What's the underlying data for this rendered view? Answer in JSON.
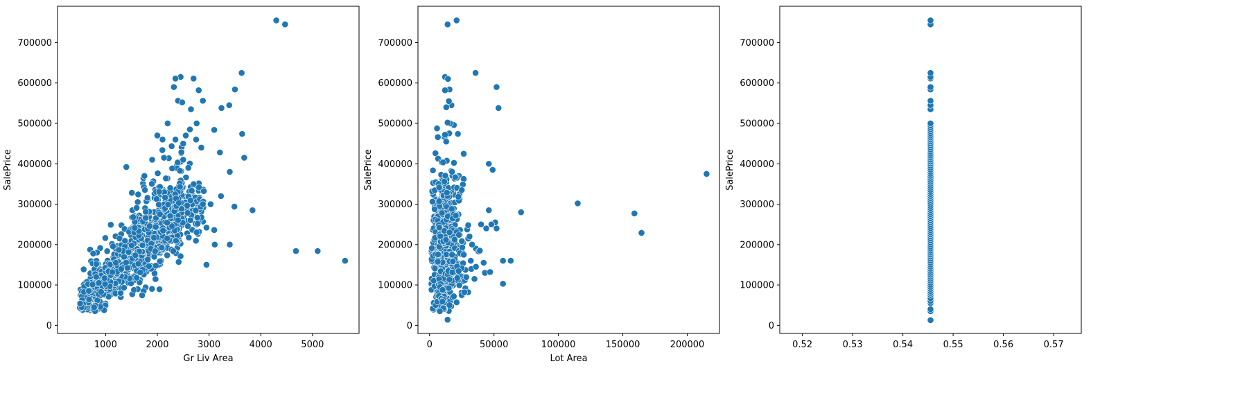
{
  "chart_data": [
    {
      "type": "scatter",
      "title": "",
      "xlabel": "Gr Liv Area",
      "ylabel": "SalePrice",
      "xlim": [
        70,
        5900
      ],
      "ylim": [
        -20000,
        790000
      ],
      "xticks": [
        1000,
        2000,
        3000,
        4000,
        5000
      ],
      "yticks": [
        0,
        100000,
        200000,
        300000,
        400000,
        500000,
        600000,
        700000
      ],
      "marker_color": "#1f77b4",
      "grid": false,
      "points": [
        [
          4300,
          755000
        ],
        [
          4470,
          745000
        ],
        [
          3630,
          625000
        ],
        [
          2450,
          615000
        ],
        [
          2350,
          611000
        ],
        [
          2700,
          611000
        ],
        [
          2320,
          590000
        ],
        [
          3500,
          584000
        ],
        [
          2800,
          582000
        ],
        [
          3390,
          545000
        ],
        [
          3240,
          538000
        ],
        [
          2650,
          535000
        ],
        [
          2400,
          556000
        ],
        [
          2480,
          552000
        ],
        [
          2880,
          556000
        ],
        [
          3100,
          484000
        ],
        [
          3640,
          474000
        ],
        [
          2200,
          500000
        ],
        [
          3680,
          415000
        ],
        [
          3210,
          428000
        ],
        [
          3400,
          380000
        ],
        [
          3840,
          285000
        ],
        [
          3490,
          294000
        ],
        [
          3030,
          300000
        ],
        [
          3230,
          320000
        ],
        [
          3100,
          236000
        ],
        [
          2950,
          242000
        ],
        [
          2880,
          300000
        ],
        [
          2950,
          150000
        ],
        [
          3110,
          200000
        ],
        [
          3400,
          200000
        ],
        [
          4680,
          184000
        ],
        [
          5100,
          184000
        ],
        [
          5630,
          160000
        ],
        [
          1400,
          392000
        ],
        [
          2500,
          410000
        ],
        [
          2600,
          390000
        ],
        [
          2100,
          460000
        ],
        [
          2000,
          470000
        ],
        [
          2350,
          460000
        ],
        [
          2750,
          460000
        ],
        [
          2500,
          450000
        ],
        [
          2630,
          485000
        ],
        [
          2760,
          500000
        ],
        [
          1900,
          410000
        ],
        [
          1750,
          370000
        ],
        [
          2550,
          470000
        ],
        [
          2850,
          440000
        ]
      ],
      "clusters": [
        {
          "slope": 105,
          "intercept": 5000,
          "xmin": 700,
          "xmax": 2900,
          "spread": 40000,
          "count": 520
        },
        {
          "slope": 125,
          "intercept": -10000,
          "xmin": 500,
          "xmax": 1500,
          "spread": 25000,
          "count": 220
        },
        {
          "slope": 120,
          "intercept": 30000,
          "xmin": 1500,
          "xmax": 2500,
          "spread": 55000,
          "count": 260
        }
      ]
    },
    {
      "type": "scatter",
      "title": "",
      "xlabel": "Lot Area",
      "ylabel": "SalePrice",
      "xlim": [
        -9000,
        225000
      ],
      "ylim": [
        -20000,
        790000
      ],
      "xticks": [
        0,
        50000,
        100000,
        150000,
        200000
      ],
      "yticks": [
        0,
        100000,
        200000,
        300000,
        400000,
        500000,
        600000,
        700000
      ],
      "marker_color": "#1f77b4",
      "grid": false,
      "points": [
        [
          14000,
          745000
        ],
        [
          21000,
          755000
        ],
        [
          35700,
          625000
        ],
        [
          12000,
          615000
        ],
        [
          14300,
          610000
        ],
        [
          15500,
          584000
        ],
        [
          12000,
          582000
        ],
        [
          52000,
          590000
        ],
        [
          53500,
          538000
        ],
        [
          17000,
          545000
        ],
        [
          15000,
          555000
        ],
        [
          13000,
          540000
        ],
        [
          16000,
          500000
        ],
        [
          22000,
          474000
        ],
        [
          12000,
          472000
        ],
        [
          46000,
          400000
        ],
        [
          49000,
          385000
        ],
        [
          14000,
          502000
        ],
        [
          115000,
          302000
        ],
        [
          159000,
          277000
        ],
        [
          164500,
          229000
        ],
        [
          215000,
          375000
        ],
        [
          71000,
          280000
        ],
        [
          57000,
          103000
        ],
        [
          57000,
          160000
        ],
        [
          63000,
          160000
        ],
        [
          46000,
          285000
        ],
        [
          44000,
          240000
        ],
        [
          40000,
          250000
        ],
        [
          52000,
          240000
        ],
        [
          51000,
          255000
        ],
        [
          48000,
          250000
        ],
        [
          36000,
          145000
        ],
        [
          36000,
          190000
        ],
        [
          38000,
          183000
        ],
        [
          33000,
          200000
        ],
        [
          30000,
          215000
        ],
        [
          30000,
          82000
        ],
        [
          27000,
          82000
        ],
        [
          25000,
          335000
        ],
        [
          21000,
          57000
        ],
        [
          14000,
          14000
        ],
        [
          8000,
          35000
        ],
        [
          43000,
          130000
        ],
        [
          47000,
          132000
        ],
        [
          39000,
          185000
        ],
        [
          42000,
          155000
        ],
        [
          30000,
          248000
        ],
        [
          31000,
          220000
        ],
        [
          32000,
          160000
        ]
      ],
      "clusters": [
        {
          "xcenter": 9500,
          "xspread": 3200,
          "ycenter": 180000,
          "yspread": 70000,
          "count": 850
        },
        {
          "xcenter": 14000,
          "xspread": 5000,
          "ycenter": 240000,
          "yspread": 90000,
          "count": 180
        },
        {
          "xcenter": 22000,
          "xspread": 5000,
          "ycenter": 170000,
          "yspread": 60000,
          "count": 60
        }
      ]
    },
    {
      "type": "scatter",
      "title": "",
      "xlabel": "",
      "ylabel": "SalePrice",
      "xlim": [
        0.5155,
        0.5755
      ],
      "ylim": [
        -20000,
        790000
      ],
      "xticks": [
        0.52,
        0.53,
        0.54,
        0.55,
        0.56,
        0.57
      ],
      "xtick_labels": [
        "0.52",
        "0.53",
        "0.54",
        "0.55",
        "0.56",
        "0.57"
      ],
      "yticks": [
        0,
        100000,
        200000,
        300000,
        400000,
        500000,
        600000,
        700000
      ],
      "marker_color": "#1f77b4",
      "grid": false,
      "x_constant": 0.5455,
      "values": [
        12789,
        35000,
        40000,
        55000,
        60000,
        67000,
        75000,
        80000,
        85000,
        90000,
        95000,
        100000,
        105000,
        110000,
        115000,
        120000,
        125000,
        130000,
        135000,
        140000,
        145000,
        150000,
        155000,
        160000,
        165000,
        170000,
        175000,
        180000,
        185000,
        190000,
        195000,
        200000,
        205000,
        210000,
        215000,
        220000,
        225000,
        230000,
        235000,
        240000,
        245000,
        250000,
        255000,
        260000,
        265000,
        270000,
        275000,
        280000,
        285000,
        290000,
        295000,
        300000,
        305000,
        310000,
        315000,
        320000,
        325000,
        330000,
        335000,
        340000,
        345000,
        350000,
        355000,
        360000,
        365000,
        370000,
        375000,
        380000,
        385000,
        390000,
        395000,
        400000,
        405000,
        410000,
        415000,
        420000,
        425000,
        430000,
        435000,
        440000,
        445000,
        450000,
        455000,
        460000,
        465000,
        470000,
        475000,
        480000,
        485000,
        490000,
        495000,
        500000,
        535000,
        545000,
        556000,
        584000,
        590000,
        611000,
        615000,
        625000,
        745000,
        755000
      ]
    }
  ]
}
